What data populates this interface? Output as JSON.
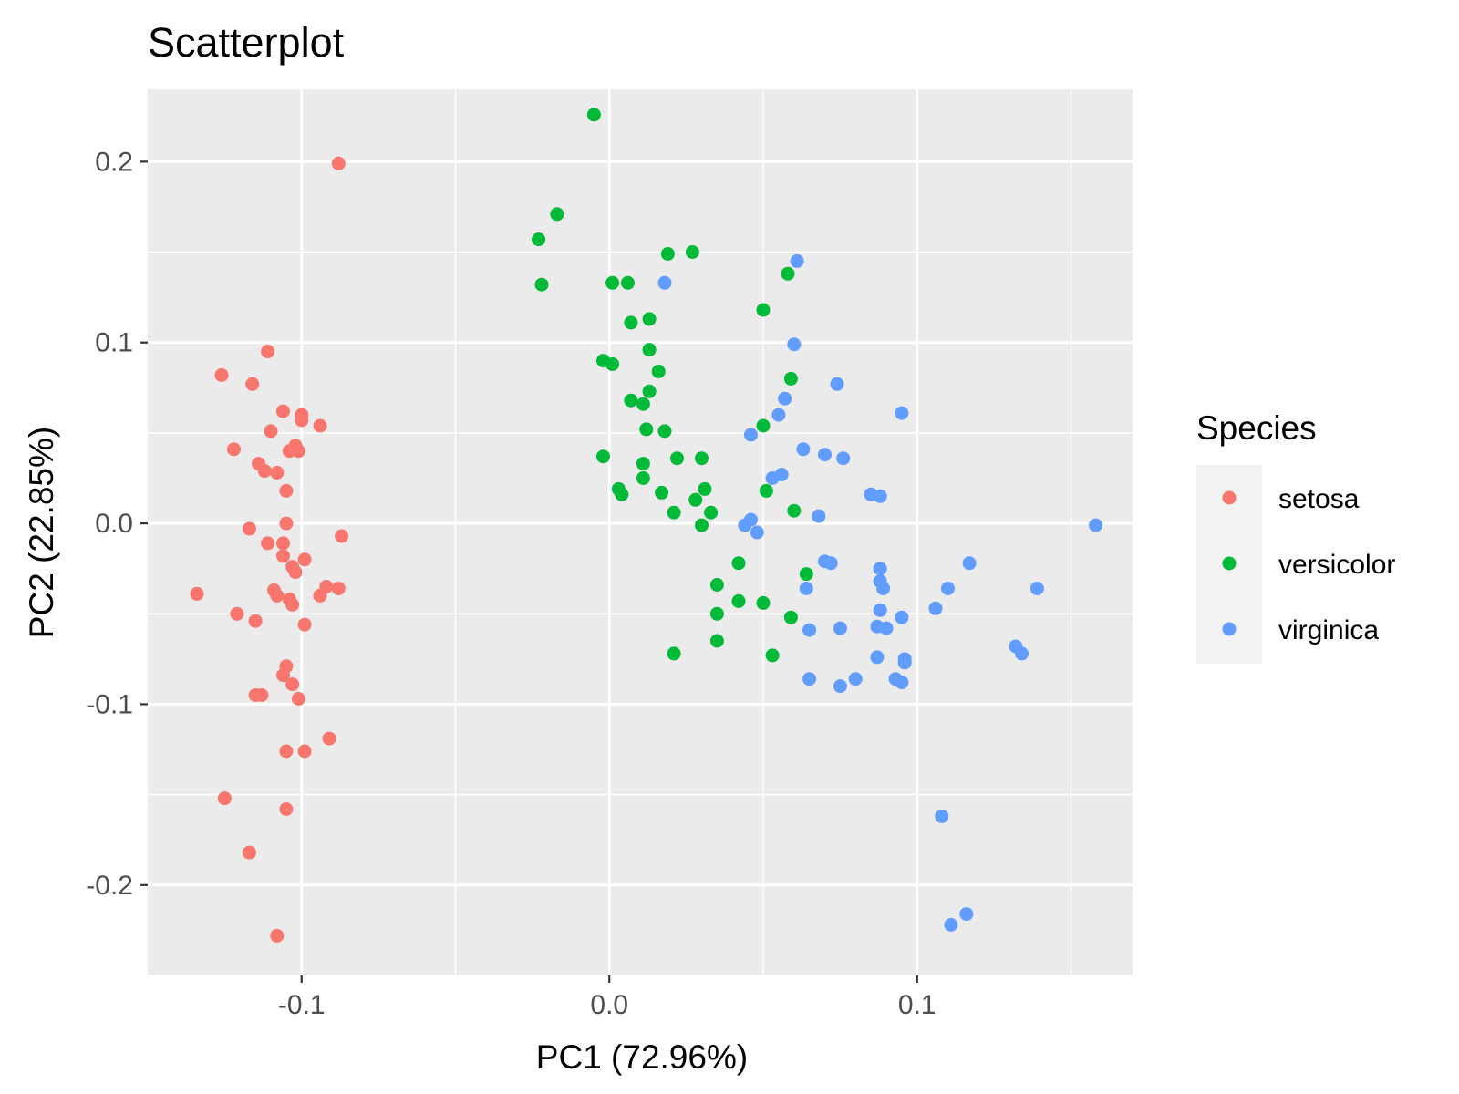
{
  "chart_data": {
    "type": "scatter",
    "title": "Scatterplot",
    "xlabel": "PC1 (72.96%)",
    "ylabel": "PC2 (22.85%)",
    "xlim": [
      -0.15,
      0.17
    ],
    "ylim": [
      -0.25,
      0.24
    ],
    "x_ticks": [
      -0.1,
      0.0,
      0.1
    ],
    "x_tick_labels": [
      "-0.1",
      "0.0",
      "0.1"
    ],
    "y_ticks": [
      -0.2,
      -0.1,
      0.0,
      0.1,
      0.2
    ],
    "y_tick_labels": [
      "-0.2",
      "-0.1",
      "0.0",
      "0.1",
      "0.2"
    ],
    "grid": true,
    "panel_background": "#ebebeb",
    "legend": {
      "title": "Species",
      "position": "right"
    },
    "series": [
      {
        "name": "setosa",
        "color": "#f8766d",
        "points": [
          [
            -0.088,
            0.199
          ],
          [
            -0.111,
            0.095
          ],
          [
            -0.126,
            0.082
          ],
          [
            -0.116,
            0.077
          ],
          [
            -0.106,
            0.062
          ],
          [
            -0.1,
            0.06
          ],
          [
            -0.1,
            0.057
          ],
          [
            -0.094,
            0.054
          ],
          [
            -0.11,
            0.051
          ],
          [
            -0.102,
            0.043
          ],
          [
            -0.104,
            0.04
          ],
          [
            -0.101,
            0.04
          ],
          [
            -0.122,
            0.041
          ],
          [
            -0.114,
            0.033
          ],
          [
            -0.112,
            0.029
          ],
          [
            -0.108,
            0.028
          ],
          [
            -0.105,
            0.018
          ],
          [
            -0.105,
            0.0
          ],
          [
            -0.117,
            -0.003
          ],
          [
            -0.087,
            -0.007
          ],
          [
            -0.111,
            -0.011
          ],
          [
            -0.106,
            -0.011
          ],
          [
            -0.106,
            -0.018
          ],
          [
            -0.099,
            -0.02
          ],
          [
            -0.103,
            -0.024
          ],
          [
            -0.102,
            -0.027
          ],
          [
            -0.092,
            -0.035
          ],
          [
            -0.088,
            -0.036
          ],
          [
            -0.109,
            -0.037
          ],
          [
            -0.104,
            -0.042
          ],
          [
            -0.108,
            -0.04
          ],
          [
            -0.094,
            -0.04
          ],
          [
            -0.103,
            -0.045
          ],
          [
            -0.134,
            -0.039
          ],
          [
            -0.121,
            -0.05
          ],
          [
            -0.115,
            -0.054
          ],
          [
            -0.099,
            -0.056
          ],
          [
            -0.105,
            -0.079
          ],
          [
            -0.106,
            -0.084
          ],
          [
            -0.103,
            -0.089
          ],
          [
            -0.115,
            -0.095
          ],
          [
            -0.113,
            -0.095
          ],
          [
            -0.101,
            -0.097
          ],
          [
            -0.091,
            -0.119
          ],
          [
            -0.105,
            -0.126
          ],
          [
            -0.099,
            -0.126
          ],
          [
            -0.125,
            -0.152
          ],
          [
            -0.105,
            -0.158
          ],
          [
            -0.117,
            -0.182
          ],
          [
            -0.108,
            -0.228
          ]
        ]
      },
      {
        "name": "versicolor",
        "color": "#00ba38",
        "points": [
          [
            -0.005,
            0.226
          ],
          [
            -0.017,
            0.171
          ],
          [
            -0.023,
            0.157
          ],
          [
            -0.022,
            0.132
          ],
          [
            0.019,
            0.149
          ],
          [
            0.027,
            0.15
          ],
          [
            0.001,
            0.133
          ],
          [
            0.006,
            0.133
          ],
          [
            0.058,
            0.138
          ],
          [
            0.05,
            0.118
          ],
          [
            0.007,
            0.111
          ],
          [
            0.013,
            0.113
          ],
          [
            0.013,
            0.096
          ],
          [
            -0.002,
            0.09
          ],
          [
            0.001,
            0.088
          ],
          [
            0.016,
            0.084
          ],
          [
            0.059,
            0.08
          ],
          [
            0.013,
            0.073
          ],
          [
            0.007,
            0.068
          ],
          [
            0.011,
            0.066
          ],
          [
            0.05,
            0.054
          ],
          [
            0.012,
            0.052
          ],
          [
            0.018,
            0.051
          ],
          [
            -0.002,
            0.037
          ],
          [
            0.022,
            0.036
          ],
          [
            0.03,
            0.036
          ],
          [
            0.011,
            0.033
          ],
          [
            0.011,
            0.025
          ],
          [
            0.031,
            0.019
          ],
          [
            0.003,
            0.019
          ],
          [
            0.004,
            0.016
          ],
          [
            0.017,
            0.017
          ],
          [
            0.051,
            0.018
          ],
          [
            0.028,
            0.013
          ],
          [
            0.033,
            0.006
          ],
          [
            0.021,
            0.006
          ],
          [
            0.06,
            0.007
          ],
          [
            0.03,
            -0.001
          ],
          [
            0.042,
            -0.022
          ],
          [
            0.064,
            -0.028
          ],
          [
            0.035,
            -0.034
          ],
          [
            0.042,
            -0.043
          ],
          [
            0.05,
            -0.044
          ],
          [
            0.035,
            -0.05
          ],
          [
            0.059,
            -0.052
          ],
          [
            0.035,
            -0.065
          ],
          [
            0.021,
            -0.072
          ],
          [
            0.053,
            -0.073
          ]
        ]
      },
      {
        "name": "virginica",
        "color": "#619cff",
        "points": [
          [
            0.018,
            0.133
          ],
          [
            0.061,
            0.145
          ],
          [
            0.06,
            0.099
          ],
          [
            0.074,
            0.077
          ],
          [
            0.095,
            0.061
          ],
          [
            0.057,
            0.069
          ],
          [
            0.055,
            0.06
          ],
          [
            0.046,
            0.049
          ],
          [
            0.063,
            0.041
          ],
          [
            0.07,
            0.038
          ],
          [
            0.076,
            0.036
          ],
          [
            0.056,
            0.027
          ],
          [
            0.053,
            0.025
          ],
          [
            0.085,
            0.016
          ],
          [
            0.088,
            0.015
          ],
          [
            0.068,
            0.004
          ],
          [
            0.046,
            0.002
          ],
          [
            0.044,
            -0.001
          ],
          [
            0.048,
            -0.005
          ],
          [
            0.158,
            -0.001
          ],
          [
            0.07,
            -0.021
          ],
          [
            0.072,
            -0.022
          ],
          [
            0.117,
            -0.022
          ],
          [
            0.088,
            -0.025
          ],
          [
            0.088,
            -0.032
          ],
          [
            0.089,
            -0.036
          ],
          [
            0.064,
            -0.036
          ],
          [
            0.11,
            -0.036
          ],
          [
            0.139,
            -0.036
          ],
          [
            0.088,
            -0.048
          ],
          [
            0.106,
            -0.047
          ],
          [
            0.095,
            -0.052
          ],
          [
            0.087,
            -0.057
          ],
          [
            0.09,
            -0.058
          ],
          [
            0.075,
            -0.058
          ],
          [
            0.065,
            -0.059
          ],
          [
            0.132,
            -0.068
          ],
          [
            0.134,
            -0.072
          ],
          [
            0.087,
            -0.074
          ],
          [
            0.096,
            -0.075
          ],
          [
            0.096,
            -0.077
          ],
          [
            0.093,
            -0.086
          ],
          [
            0.095,
            -0.088
          ],
          [
            0.065,
            -0.086
          ],
          [
            0.08,
            -0.086
          ],
          [
            0.075,
            -0.09
          ],
          [
            0.108,
            -0.162
          ],
          [
            0.116,
            -0.216
          ],
          [
            0.111,
            -0.222
          ]
        ]
      }
    ]
  }
}
